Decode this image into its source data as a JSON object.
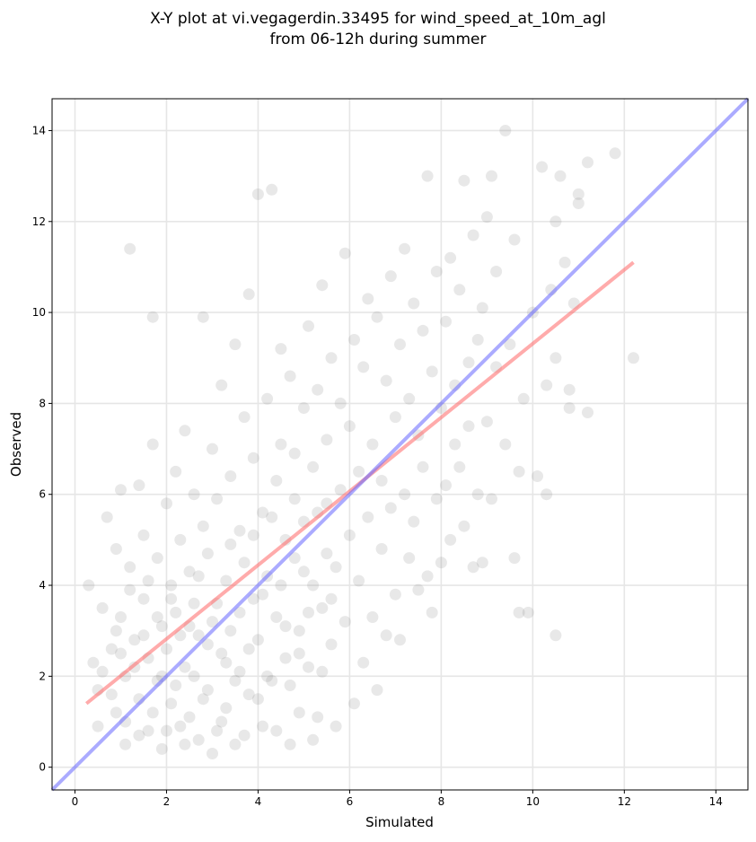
{
  "chart_data": {
    "type": "scatter",
    "title_line1": "X-Y plot at vi.vegagerdin.33495 for wind_speed_at_10m_agl",
    "title_line2": "from 06-12h during summer",
    "xlabel": "Simulated",
    "ylabel": "Observed",
    "xlim": [
      -0.5,
      14.7
    ],
    "ylim": [
      -0.5,
      14.7
    ],
    "xticks": [
      0,
      2,
      4,
      6,
      8,
      10,
      12,
      14
    ],
    "yticks": [
      0,
      2,
      4,
      6,
      8,
      10,
      12,
      14
    ],
    "grid": true,
    "colors": {
      "points": "#808080",
      "fit_line": "#ff6666",
      "identity_line": "#6666ff",
      "grid": "#e6e6e6",
      "axes": "#000000"
    },
    "series": [
      {
        "kind": "scatter",
        "points": [
          [
            0.3,
            4.0
          ],
          [
            0.4,
            2.3
          ],
          [
            0.5,
            1.7
          ],
          [
            0.6,
            3.5
          ],
          [
            0.5,
            0.9
          ],
          [
            0.7,
            5.5
          ],
          [
            0.8,
            2.6
          ],
          [
            0.9,
            4.8
          ],
          [
            0.9,
            1.2
          ],
          [
            1.0,
            6.1
          ],
          [
            1.0,
            3.3
          ],
          [
            1.1,
            2.0
          ],
          [
            1.1,
            0.5
          ],
          [
            1.2,
            4.4
          ],
          [
            1.2,
            11.4
          ],
          [
            1.3,
            2.8
          ],
          [
            1.4,
            6.2
          ],
          [
            1.4,
            1.5
          ],
          [
            1.5,
            5.1
          ],
          [
            1.5,
            3.7
          ],
          [
            1.6,
            0.8
          ],
          [
            1.6,
            2.4
          ],
          [
            1.7,
            9.9
          ],
          [
            1.7,
            7.1
          ],
          [
            1.8,
            4.6
          ],
          [
            1.8,
            1.9
          ],
          [
            1.9,
            3.1
          ],
          [
            1.9,
            0.4
          ],
          [
            2.0,
            5.8
          ],
          [
            2.0,
            2.6
          ],
          [
            2.1,
            4.0
          ],
          [
            2.1,
            1.4
          ],
          [
            2.2,
            6.5
          ],
          [
            2.2,
            3.4
          ],
          [
            2.3,
            0.9
          ],
          [
            2.3,
            5.0
          ],
          [
            2.4,
            2.2
          ],
          [
            2.4,
            7.4
          ],
          [
            2.5,
            4.3
          ],
          [
            2.5,
            1.1
          ],
          [
            2.6,
            3.6
          ],
          [
            2.6,
            6.0
          ],
          [
            2.7,
            0.6
          ],
          [
            2.7,
            2.9
          ],
          [
            2.8,
            5.3
          ],
          [
            2.8,
            9.9
          ],
          [
            2.9,
            1.7
          ],
          [
            2.9,
            4.7
          ],
          [
            3.0,
            7.0
          ],
          [
            3.0,
            3.2
          ],
          [
            3.1,
            0.8
          ],
          [
            3.1,
            5.9
          ],
          [
            3.2,
            2.5
          ],
          [
            3.2,
            8.4
          ],
          [
            3.3,
            4.1
          ],
          [
            3.3,
            1.3
          ],
          [
            3.4,
            6.4
          ],
          [
            3.4,
            3.0
          ],
          [
            3.5,
            9.3
          ],
          [
            3.5,
            0.5
          ],
          [
            3.6,
            5.2
          ],
          [
            3.6,
            2.1
          ],
          [
            3.7,
            7.7
          ],
          [
            3.7,
            4.5
          ],
          [
            3.8,
            10.4
          ],
          [
            3.8,
            1.6
          ],
          [
            3.9,
            3.7
          ],
          [
            3.9,
            6.8
          ],
          [
            4.0,
            12.6
          ],
          [
            4.0,
            2.8
          ],
          [
            4.1,
            5.6
          ],
          [
            4.1,
            0.9
          ],
          [
            4.2,
            8.1
          ],
          [
            4.2,
            4.2
          ],
          [
            4.3,
            12.7
          ],
          [
            4.3,
            1.9
          ],
          [
            4.4,
            6.3
          ],
          [
            4.4,
            3.3
          ],
          [
            4.5,
            9.2
          ],
          [
            4.5,
            7.1
          ],
          [
            4.6,
            2.4
          ],
          [
            4.6,
            5.0
          ],
          [
            4.7,
            0.5
          ],
          [
            4.7,
            8.6
          ],
          [
            4.8,
            4.6
          ],
          [
            4.8,
            6.9
          ],
          [
            4.9,
            3.0
          ],
          [
            4.9,
            1.2
          ],
          [
            5.0,
            7.9
          ],
          [
            5.0,
            5.4
          ],
          [
            5.1,
            9.7
          ],
          [
            5.1,
            2.2
          ],
          [
            5.2,
            4.0
          ],
          [
            5.2,
            6.6
          ],
          [
            5.3,
            8.3
          ],
          [
            5.3,
            1.1
          ],
          [
            5.4,
            3.5
          ],
          [
            5.4,
            10.6
          ],
          [
            5.5,
            5.8
          ],
          [
            5.5,
            7.2
          ],
          [
            5.6,
            2.7
          ],
          [
            5.6,
            9.0
          ],
          [
            5.7,
            4.4
          ],
          [
            5.7,
            0.9
          ],
          [
            5.8,
            6.1
          ],
          [
            5.8,
            8.0
          ],
          [
            5.9,
            3.2
          ],
          [
            5.9,
            11.3
          ],
          [
            6.0,
            5.1
          ],
          [
            6.0,
            7.5
          ],
          [
            6.1,
            1.4
          ],
          [
            6.1,
            9.4
          ],
          [
            6.2,
            4.1
          ],
          [
            6.2,
            6.5
          ],
          [
            6.3,
            2.3
          ],
          [
            6.3,
            8.8
          ],
          [
            6.4,
            10.3
          ],
          [
            6.4,
            5.5
          ],
          [
            6.5,
            3.3
          ],
          [
            6.5,
            7.1
          ],
          [
            6.6,
            1.7
          ],
          [
            6.6,
            9.9
          ],
          [
            6.7,
            4.8
          ],
          [
            6.7,
            6.3
          ],
          [
            6.8,
            8.5
          ],
          [
            6.8,
            2.9
          ],
          [
            6.9,
            10.8
          ],
          [
            6.9,
            5.7
          ],
          [
            7.0,
            7.7
          ],
          [
            7.0,
            3.8
          ],
          [
            7.1,
            9.3
          ],
          [
            7.1,
            2.8
          ],
          [
            7.2,
            6.0
          ],
          [
            7.2,
            11.4
          ],
          [
            7.3,
            4.6
          ],
          [
            7.3,
            8.1
          ],
          [
            7.4,
            10.2
          ],
          [
            7.4,
            5.4
          ],
          [
            7.5,
            7.3
          ],
          [
            7.5,
            3.9
          ],
          [
            7.6,
            9.6
          ],
          [
            7.6,
            6.6
          ],
          [
            7.7,
            13.0
          ],
          [
            7.7,
            4.2
          ],
          [
            7.8,
            8.7
          ],
          [
            7.8,
            3.4
          ],
          [
            7.9,
            10.9
          ],
          [
            7.9,
            5.9
          ],
          [
            8.0,
            7.9
          ],
          [
            8.0,
            4.5
          ],
          [
            8.1,
            9.8
          ],
          [
            8.1,
            6.2
          ],
          [
            8.2,
            11.2
          ],
          [
            8.2,
            5.0
          ],
          [
            8.3,
            8.4
          ],
          [
            8.3,
            7.1
          ],
          [
            8.4,
            10.5
          ],
          [
            8.4,
            6.6
          ],
          [
            8.5,
            12.9
          ],
          [
            8.5,
            5.3
          ],
          [
            8.6,
            8.9
          ],
          [
            8.6,
            7.5
          ],
          [
            8.7,
            11.7
          ],
          [
            8.7,
            4.4
          ],
          [
            8.8,
            9.4
          ],
          [
            8.8,
            6.0
          ],
          [
            8.9,
            10.1
          ],
          [
            8.9,
            4.5
          ],
          [
            9.0,
            12.1
          ],
          [
            9.0,
            7.6
          ],
          [
            9.1,
            13.0
          ],
          [
            9.1,
            5.9
          ],
          [
            9.2,
            8.8
          ],
          [
            9.2,
            10.9
          ],
          [
            9.4,
            14.0
          ],
          [
            9.4,
            7.1
          ],
          [
            9.5,
            9.3
          ],
          [
            9.6,
            11.6
          ],
          [
            9.6,
            4.6
          ],
          [
            9.7,
            6.5
          ],
          [
            9.7,
            3.4
          ],
          [
            9.8,
            8.1
          ],
          [
            9.9,
            3.4
          ],
          [
            10.0,
            10.0
          ],
          [
            10.1,
            6.4
          ],
          [
            10.2,
            13.2
          ],
          [
            10.3,
            8.4
          ],
          [
            10.3,
            6.0
          ],
          [
            10.4,
            10.5
          ],
          [
            10.5,
            12.0
          ],
          [
            10.5,
            9.0
          ],
          [
            10.5,
            2.9
          ],
          [
            10.6,
            13.0
          ],
          [
            10.7,
            11.1
          ],
          [
            10.8,
            8.3
          ],
          [
            10.8,
            7.9
          ],
          [
            10.9,
            10.2
          ],
          [
            11.0,
            12.6
          ],
          [
            11.0,
            12.4
          ],
          [
            11.2,
            13.3
          ],
          [
            11.2,
            7.8
          ],
          [
            11.8,
            13.5
          ],
          [
            12.2,
            9.0
          ],
          [
            0.6,
            2.1
          ],
          [
            0.8,
            1.6
          ],
          [
            0.9,
            3.0
          ],
          [
            1.0,
            2.5
          ],
          [
            1.1,
            1.0
          ],
          [
            1.2,
            3.9
          ],
          [
            1.3,
            2.2
          ],
          [
            1.4,
            0.7
          ],
          [
            1.5,
            2.9
          ],
          [
            1.6,
            4.1
          ],
          [
            1.7,
            1.2
          ],
          [
            1.8,
            3.3
          ],
          [
            1.9,
            2.0
          ],
          [
            2.0,
            0.8
          ],
          [
            2.1,
            3.7
          ],
          [
            2.2,
            1.8
          ],
          [
            2.3,
            2.9
          ],
          [
            2.4,
            0.5
          ],
          [
            2.5,
            3.1
          ],
          [
            2.6,
            2.0
          ],
          [
            2.7,
            4.2
          ],
          [
            2.8,
            1.5
          ],
          [
            2.9,
            2.7
          ],
          [
            3.0,
            0.3
          ],
          [
            3.1,
            3.6
          ],
          [
            3.2,
            1.0
          ],
          [
            3.3,
            2.3
          ],
          [
            3.4,
            4.9
          ],
          [
            3.5,
            1.9
          ],
          [
            3.6,
            3.4
          ],
          [
            3.7,
            0.7
          ],
          [
            3.8,
            2.6
          ],
          [
            3.9,
            5.1
          ],
          [
            4.0,
            1.5
          ],
          [
            4.1,
            3.8
          ],
          [
            4.2,
            2.0
          ],
          [
            4.3,
            5.5
          ],
          [
            4.4,
            0.8
          ],
          [
            4.5,
            4.0
          ],
          [
            4.6,
            3.1
          ],
          [
            4.7,
            1.8
          ],
          [
            4.8,
            5.9
          ],
          [
            4.9,
            2.5
          ],
          [
            5.0,
            4.3
          ],
          [
            5.1,
            3.4
          ],
          [
            5.2,
            0.6
          ],
          [
            5.3,
            5.6
          ],
          [
            5.4,
            2.1
          ],
          [
            5.5,
            4.7
          ],
          [
            5.6,
            3.7
          ]
        ]
      },
      {
        "kind": "fit_line",
        "points": [
          [
            0.25,
            1.4
          ],
          [
            12.2,
            11.1
          ]
        ]
      },
      {
        "kind": "identity_line",
        "points": [
          [
            -0.5,
            -0.5
          ],
          [
            14.7,
            14.7
          ]
        ]
      }
    ]
  }
}
